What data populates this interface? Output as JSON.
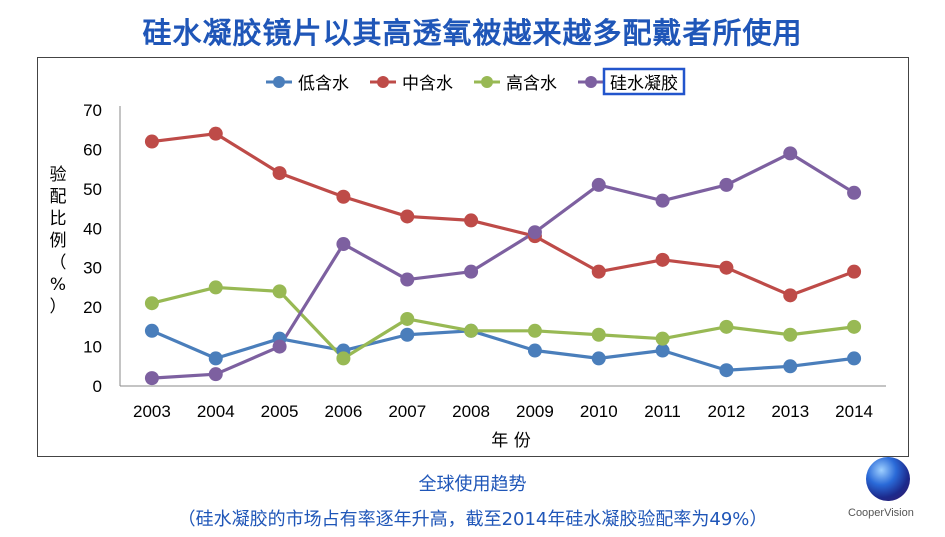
{
  "title": "硅水凝胶镜片以其高透氧被越来越多配戴者所使用",
  "caption": "全球使用趋势",
  "subcaption": "（硅水凝胶的市场占有率逐年升高，截至2014年硅水凝胶验配率为49%）",
  "logo_text": "CooperVision",
  "chart_data": {
    "type": "line",
    "x": [
      "2003",
      "2004",
      "2005",
      "2006",
      "2007",
      "2008",
      "2009",
      "2010",
      "2011",
      "2012",
      "2013",
      "2014"
    ],
    "xlabel": "年 份",
    "ylabel": "验配比例（%）",
    "ylim": [
      0,
      70
    ],
    "yticks": [
      0,
      10,
      20,
      30,
      40,
      50,
      60,
      70
    ],
    "grid": false,
    "legend_position": "top",
    "series": [
      {
        "name": "低含水",
        "color": "#4a7ebb",
        "values": [
          14,
          7,
          12,
          9,
          13,
          14,
          9,
          7,
          9,
          4,
          5,
          7
        ]
      },
      {
        "name": "中含水",
        "color": "#be4b48",
        "values": [
          62,
          64,
          54,
          48,
          43,
          42,
          38,
          29,
          32,
          30,
          23,
          29
        ]
      },
      {
        "name": "高含水",
        "color": "#98b954",
        "values": [
          21,
          25,
          24,
          7,
          17,
          14,
          14,
          13,
          12,
          15,
          13,
          15
        ]
      },
      {
        "name": "硅水凝胶",
        "color": "#7d60a0",
        "values": [
          2,
          3,
          10,
          36,
          27,
          29,
          39,
          51,
          47,
          51,
          59,
          49
        ],
        "highlighted": true
      }
    ],
    "highlight_color": "#2255cc"
  }
}
